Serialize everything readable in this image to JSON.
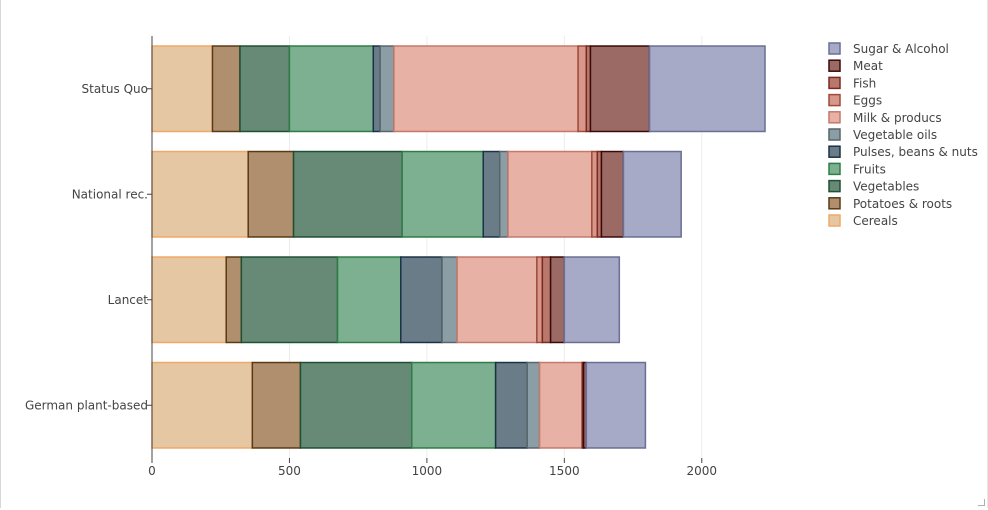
{
  "chart_data": {
    "type": "bar",
    "orientation": "horizontal",
    "barmode": "stack",
    "title": "",
    "xlabel": "",
    "ylabel": "",
    "xlim": [
      0,
      2270
    ],
    "x_ticks": [
      0,
      500,
      1000,
      1500,
      2000
    ],
    "grid": true,
    "legend_position": "top-right",
    "categories": [
      "German plant-based",
      "Lancet",
      "National rec.",
      "Status Quo"
    ],
    "series": [
      {
        "name": "Cereals",
        "fill": "#e5c8a3",
        "stroke": "#f0a868",
        "values": [
          365,
          270,
          350,
          220
        ]
      },
      {
        "name": "Potatoes & roots",
        "fill": "#b08f6f",
        "stroke": "#5a3a14",
        "values": [
          175,
          55,
          165,
          100
        ]
      },
      {
        "name": "Vegetables",
        "fill": "#678a76",
        "stroke": "#1f5033",
        "values": [
          405,
          350,
          395,
          180
        ]
      },
      {
        "name": "Fruits",
        "fill": "#7db090",
        "stroke": "#2e7d46",
        "values": [
          305,
          230,
          295,
          305
        ]
      },
      {
        "name": "Pulses, beans & nuts",
        "fill": "#6a7c88",
        "stroke": "#1a3246",
        "values": [
          115,
          150,
          60,
          25
        ]
      },
      {
        "name": "Vegetable oils",
        "fill": "#8c9ea5",
        "stroke": "#58666c",
        "values": [
          45,
          55,
          30,
          50
        ]
      },
      {
        "name": "Milk & producs",
        "fill": "#e7b2a5",
        "stroke": "#c4796a",
        "values": [
          155,
          290,
          305,
          670
        ]
      },
      {
        "name": "Eggs",
        "fill": "#d7978a",
        "stroke": "#a04a3a",
        "values": [
          0,
          20,
          20,
          30
        ]
      },
      {
        "name": "Fish",
        "fill": "#b8786c",
        "stroke": "#7a2a20",
        "values": [
          5,
          30,
          15,
          15
        ]
      },
      {
        "name": "Meat",
        "fill": "#9c6a64",
        "stroke": "#3a0a08",
        "values": [
          10,
          50,
          80,
          215
        ]
      },
      {
        "name": "Sugar & Alcohol",
        "fill": "#a6aac7",
        "stroke": "#6a6f93",
        "values": [
          215,
          200,
          210,
          420
        ]
      }
    ]
  }
}
